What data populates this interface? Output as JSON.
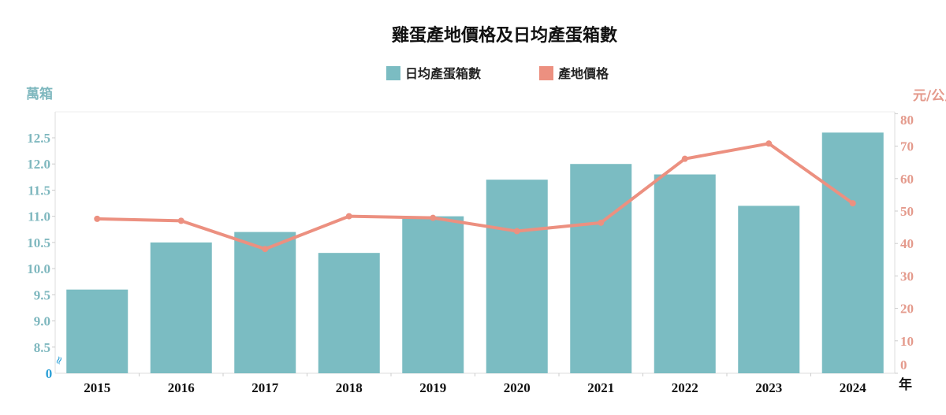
{
  "chart_data": {
    "type": "bar+line",
    "title": "雞蛋產地價格及日均產蛋箱數",
    "categories": [
      "2015",
      "2016",
      "2017",
      "2018",
      "2019",
      "2020",
      "2021",
      "2022",
      "2023",
      "2024"
    ],
    "xlabel": "年",
    "series": [
      {
        "name": "日均產蛋箱數",
        "type": "bar",
        "axis": "left",
        "color": "#7bbcc2",
        "values": [
          9.6,
          10.5,
          10.7,
          10.3,
          11.0,
          11.7,
          12.0,
          11.8,
          11.2,
          12.6
        ]
      },
      {
        "name": "產地價格",
        "type": "line",
        "axis": "right",
        "color": "#ec9080",
        "values": [
          47.6,
          47.0,
          38.3,
          48.4,
          47.9,
          43.8,
          46.4,
          66.1,
          70.8,
          52.4
        ]
      }
    ],
    "left_axis": {
      "label": "萬箱",
      "ylim": [
        8.0,
        13.0
      ],
      "break_label": "0",
      "break_symbol": "≈",
      "ticks": [
        "8.5",
        "9.0",
        "9.5",
        "10.0",
        "10.5",
        "11.0",
        "11.5",
        "12.0",
        "12.5"
      ],
      "color": "#7fb8bf",
      "break_color": "#2a9fd6"
    },
    "right_axis": {
      "label": "元/公斤",
      "ylim": [
        0,
        80
      ],
      "ticks": [
        "0",
        "10",
        "20",
        "30",
        "40",
        "50",
        "60",
        "70",
        "80"
      ],
      "color": "#e49a8c"
    },
    "legend": {
      "placement": "top-center",
      "items": [
        "日均產蛋箱數",
        "產地價格"
      ]
    },
    "grid": false
  }
}
